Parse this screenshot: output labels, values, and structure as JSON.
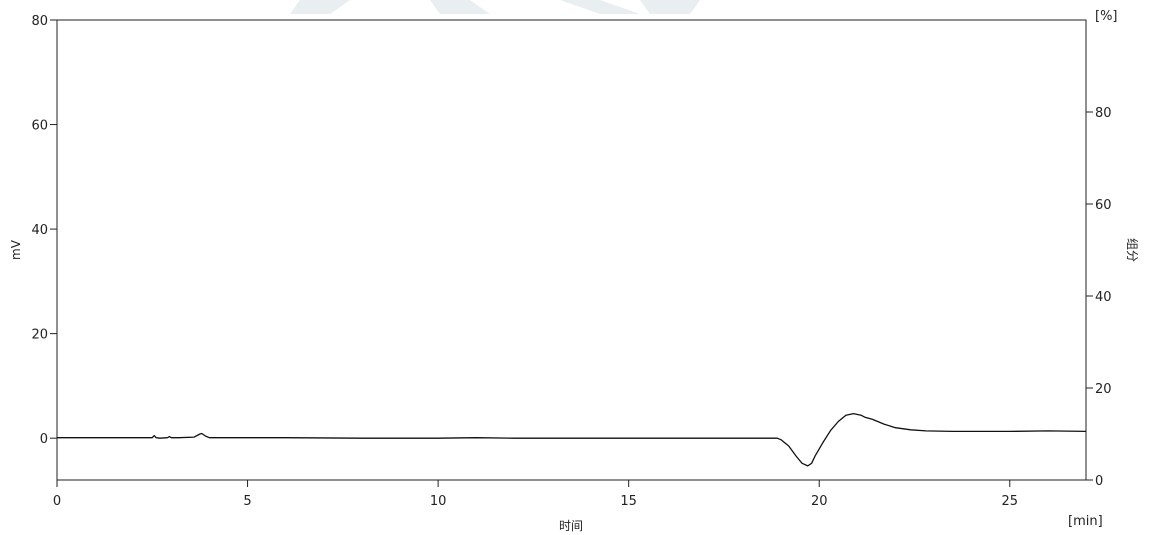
{
  "chart_data": {
    "type": "line",
    "xlabel": "时间",
    "x_unit": "[min]",
    "ylabel": "mV",
    "y2label": "组分",
    "y2_unit": "[%]",
    "xlim": [
      0,
      27
    ],
    "ylim": [
      -8,
      80
    ],
    "y2lim": [
      0,
      100
    ],
    "x_ticks": [
      0,
      5,
      10,
      15,
      20,
      25
    ],
    "y_ticks": [
      0,
      20,
      40,
      60,
      80
    ],
    "y2_ticks": [
      0,
      20,
      40,
      60,
      80
    ],
    "grid": false,
    "colors": {
      "trace": "#111111",
      "axis": "#222222"
    },
    "series": [
      {
        "x": [
          0,
          1,
          2,
          2.5,
          2.55,
          2.6,
          2.7,
          2.9,
          2.95,
          3.0,
          3.2,
          3.6,
          3.75,
          3.8,
          3.9,
          4.0,
          4.3,
          5,
          6,
          8,
          10,
          11,
          12,
          14,
          16,
          18,
          18.9,
          19.0,
          19.2,
          19.4,
          19.55,
          19.7,
          19.8,
          19.9,
          20.1,
          20.3,
          20.5,
          20.7,
          20.9,
          21.1,
          21.2,
          21.4,
          21.7,
          22.0,
          22.4,
          22.8,
          23.5,
          25,
          26,
          27
        ],
        "y": [
          0.1,
          0.1,
          0.1,
          0.1,
          0.5,
          0.1,
          0.0,
          0.1,
          0.3,
          0.1,
          0.1,
          0.2,
          0.8,
          0.9,
          0.4,
          0.1,
          0.1,
          0.1,
          0.1,
          0.0,
          0.0,
          0.1,
          0.0,
          0.0,
          0.0,
          0.0,
          0.0,
          -0.3,
          -1.5,
          -3.5,
          -4.8,
          -5.3,
          -4.8,
          -3.3,
          -0.8,
          1.5,
          3.2,
          4.4,
          4.7,
          4.4,
          4.0,
          3.6,
          2.7,
          2.0,
          1.6,
          1.4,
          1.3,
          1.3,
          1.4,
          1.3
        ]
      }
    ]
  }
}
